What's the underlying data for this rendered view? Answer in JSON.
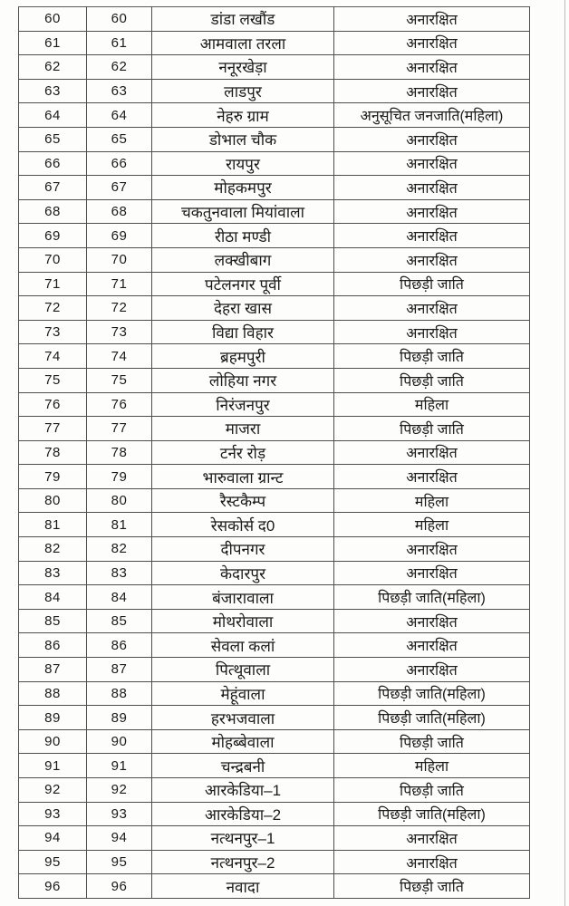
{
  "document": {
    "kind_label": "scanned ward reservation table page",
    "colors": {
      "page_background": "#fdfdfc",
      "table_line": "#4e4e4e",
      "ink": "#1b1b1b",
      "page_edge_line": "#bcbcbc"
    }
  },
  "table": {
    "columns": [
      "serial-no",
      "ward-no",
      "ward-name",
      "reservation-category"
    ],
    "rows": [
      {
        "sno": "60",
        "ward": "60",
        "name": "डांडा लखौंड",
        "category": "अनारक्षित"
      },
      {
        "sno": "61",
        "ward": "61",
        "name": "आमवाला तरला",
        "category": "अनारक्षित"
      },
      {
        "sno": "62",
        "ward": "62",
        "name": "ननूरखेड़ा",
        "category": "अनारक्षित"
      },
      {
        "sno": "63",
        "ward": "63",
        "name": "लाडपुर",
        "category": "अनारक्षित"
      },
      {
        "sno": "64",
        "ward": "64",
        "name": "नेहरु ग्राम",
        "category": "अनुसूचित जनजाति(महिला)"
      },
      {
        "sno": "65",
        "ward": "65",
        "name": "डोभाल चौक",
        "category": "अनारक्षित"
      },
      {
        "sno": "66",
        "ward": "66",
        "name": "रायपुर",
        "category": "अनारक्षित"
      },
      {
        "sno": "67",
        "ward": "67",
        "name": "मोहकमपुर",
        "category": "अनारक्षित"
      },
      {
        "sno": "68",
        "ward": "68",
        "name": "चकतुनवाला मियांवाला",
        "category": "अनारक्षित"
      },
      {
        "sno": "69",
        "ward": "69",
        "name": "रीठा मण्डी",
        "category": "अनारक्षित"
      },
      {
        "sno": "70",
        "ward": "70",
        "name": "लक्खीबाग",
        "category": "अनारक्षित"
      },
      {
        "sno": "71",
        "ward": "71",
        "name": "पटेलनगर पूर्वी",
        "category": "पिछड़ी जाति"
      },
      {
        "sno": "72",
        "ward": "72",
        "name": "देहरा खास",
        "category": "अनारक्षित"
      },
      {
        "sno": "73",
        "ward": "73",
        "name": "विद्या विहार",
        "category": "अनारक्षित"
      },
      {
        "sno": "74",
        "ward": "74",
        "name": "ब्रहमपुरी",
        "category": "पिछड़ी जाति"
      },
      {
        "sno": "75",
        "ward": "75",
        "name": "लोहिया नगर",
        "category": "पिछड़ी जाति"
      },
      {
        "sno": "76",
        "ward": "76",
        "name": "निरंजनपुर",
        "category": "महिला"
      },
      {
        "sno": "77",
        "ward": "77",
        "name": "माजरा",
        "category": "पिछड़ी जाति"
      },
      {
        "sno": "78",
        "ward": "78",
        "name": "टर्नर रोड़",
        "category": "अनारक्षित"
      },
      {
        "sno": "79",
        "ward": "79",
        "name": "भारुवाला ग्रान्ट",
        "category": "अनारक्षित"
      },
      {
        "sno": "80",
        "ward": "80",
        "name": "रैस्टकैम्प",
        "category": "महिला"
      },
      {
        "sno": "81",
        "ward": "81",
        "name": "रेसकोर्स द0",
        "category": "महिला"
      },
      {
        "sno": "82",
        "ward": "82",
        "name": "दीपनगर",
        "category": "अनारक्षित"
      },
      {
        "sno": "83",
        "ward": "83",
        "name": "केदारपुर",
        "category": "अनारक्षित"
      },
      {
        "sno": "84",
        "ward": "84",
        "name": "बंजारावाला",
        "category": "पिछड़ी जाति(महिला)"
      },
      {
        "sno": "85",
        "ward": "85",
        "name": "मोथरोवाला",
        "category": "अनारक्षित"
      },
      {
        "sno": "86",
        "ward": "86",
        "name": "सेवला कलां",
        "category": "अनारक्षित"
      },
      {
        "sno": "87",
        "ward": "87",
        "name": "पित्थूवाला",
        "category": "अनारक्षित"
      },
      {
        "sno": "88",
        "ward": "88",
        "name": "मेहूंवाला",
        "category": "पिछड़ी जाति(महिला)"
      },
      {
        "sno": "89",
        "ward": "89",
        "name": "हरभजवाला",
        "category": "पिछड़ी जाति(महिला)"
      },
      {
        "sno": "90",
        "ward": "90",
        "name": "मोहब्बेवाला",
        "category": "पिछड़ी जाति"
      },
      {
        "sno": "91",
        "ward": "91",
        "name": "चन्द्रबनी",
        "category": "महिला"
      },
      {
        "sno": "92",
        "ward": "92",
        "name": "आरकेडिया–1",
        "category": "पिछड़ी जाति"
      },
      {
        "sno": "93",
        "ward": "93",
        "name": "आरकेडिया–2",
        "category": "पिछड़ी जाति(महिला)"
      },
      {
        "sno": "94",
        "ward": "94",
        "name": "नत्थनपुर–1",
        "category": "अनारक्षित"
      },
      {
        "sno": "95",
        "ward": "95",
        "name": "नत्थनपुर–2",
        "category": "अनारक्षित"
      },
      {
        "sno": "96",
        "ward": "96",
        "name": "नवादा",
        "category": "पिछड़ी जाति"
      }
    ]
  }
}
